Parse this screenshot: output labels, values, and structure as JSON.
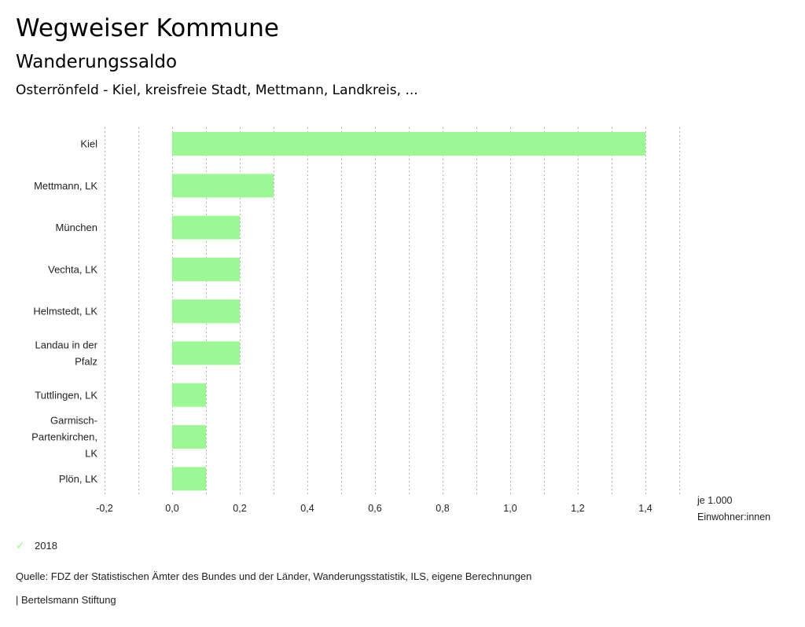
{
  "header": {
    "title": "Wegweiser Kommune",
    "subtitle": "Wanderungssaldo",
    "regions": "Osterrönfeld - Kiel, kreisfreie Stadt, Mettmann, Landkreis, ..."
  },
  "chart_data": {
    "type": "bar",
    "orientation": "horizontal",
    "categories": [
      [
        "Kiel"
      ],
      [
        "Mettmann, LK"
      ],
      [
        "München"
      ],
      [
        "Vechta, LK"
      ],
      [
        "Helmstedt, LK"
      ],
      [
        "Landau in der",
        "Pfalz"
      ],
      [
        "Tuttlingen, LK"
      ],
      [
        "Garmisch-",
        "Partenkirchen,",
        "LK"
      ],
      [
        "Plön, LK"
      ]
    ],
    "series": [
      {
        "name": "2018",
        "color": "#9cf894",
        "values": [
          1.4,
          0.3,
          0.2,
          0.2,
          0.2,
          0.2,
          0.1,
          0.1,
          0.1
        ]
      }
    ],
    "xlim": [
      -0.2,
      1.5
    ],
    "grid_step": 0.1,
    "x_ticks": [
      -0.2,
      0.0,
      0.2,
      0.4,
      0.6,
      0.8,
      1.0,
      1.2,
      1.4
    ],
    "x_tick_labels": [
      "-0,2",
      "0,0",
      "0,2",
      "0,4",
      "0,6",
      "0,8",
      "1,0",
      "1,2",
      "1,4"
    ],
    "xlabel": [
      "je 1.000",
      "Einwohner:innen"
    ],
    "grid": true,
    "legend_position": "bottom-left"
  },
  "legend": {
    "label": "2018",
    "icon": "check-icon"
  },
  "footer": {
    "source": "Quelle: FDZ der Statistischen Ämter des Bundes und der Länder, Wanderungsstatistik, ILS, eigene Berechnungen",
    "brand": "| Bertelsmann Stiftung"
  }
}
